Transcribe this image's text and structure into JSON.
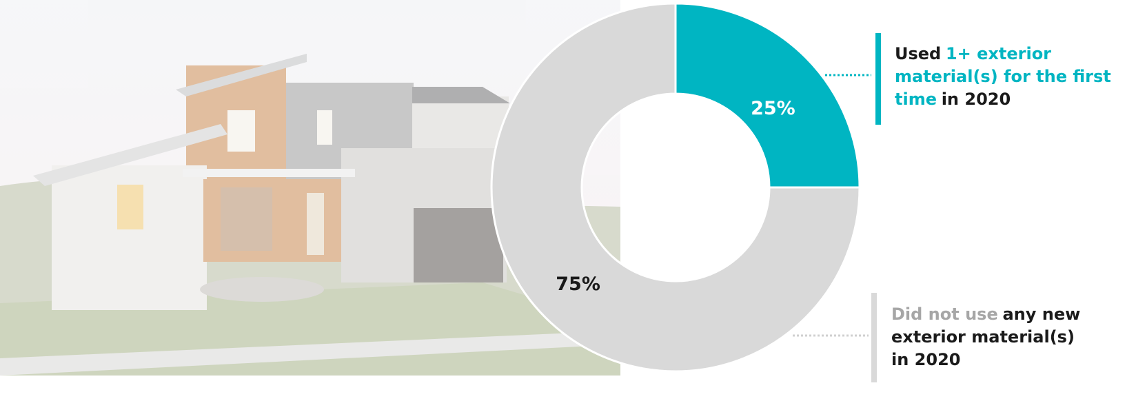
{
  "chart_data": {
    "type": "donut",
    "values": [
      25,
      75
    ],
    "value_labels": [
      "25%",
      "75%"
    ],
    "colors": [
      "#00b5c2",
      "#d9d9d9"
    ],
    "label_color": "#1a1a1a",
    "legend": [
      {
        "segments": [
          {
            "text": "Used",
            "color": "#1a1a1a"
          },
          {
            "text": "1+ exterior material(s) for the first time",
            "color": "#00b5c2"
          },
          {
            "text": "in 2020",
            "color": "#1a1a1a"
          }
        ]
      },
      {
        "segments": [
          {
            "text": "Did not use",
            "color": "#a6a6a6"
          },
          {
            "text": "any new exterior material(s) in 2020",
            "color": "#1a1a1a"
          }
        ]
      }
    ]
  }
}
